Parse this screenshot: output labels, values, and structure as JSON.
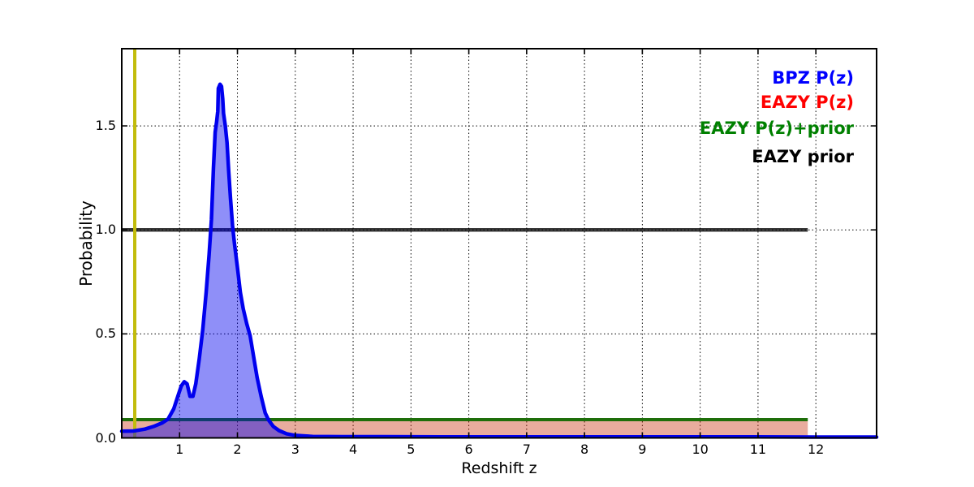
{
  "chart_data": {
    "type": "line",
    "title": "",
    "xlabel": "Redshift z",
    "ylabel": "Probability",
    "xlim": [
      0,
      13.05
    ],
    "ylim": [
      0,
      1.871
    ],
    "xticks": [
      1,
      2,
      3,
      4,
      5,
      6,
      7,
      8,
      9,
      10,
      11,
      12
    ],
    "xtick_labels": [
      "1",
      "2",
      "3",
      "4",
      "5",
      "6",
      "7",
      "8",
      "9",
      "10",
      "11",
      "12"
    ],
    "yticks": [
      0,
      0.5,
      1.0,
      1.5
    ],
    "ytick_labels": [
      "0.0",
      "0.5",
      "1.0",
      "1.5"
    ],
    "grid": {
      "enabled": true,
      "style": "dotted",
      "color": "#000000"
    },
    "legend": {
      "position": "upper-right-inside-text-only",
      "entries": [
        {
          "label": "BPZ P(z)",
          "color": "#0000ff"
        },
        {
          "label": "EAZY P(z)",
          "color": "#ff0000"
        },
        {
          "label": "EAZY P(z)+prior",
          "color": "#008000"
        },
        {
          "label": "EAZY prior",
          "color": "#000000"
        }
      ]
    },
    "series": [
      {
        "name": "BPZ P(z)",
        "kind": "filled_curve",
        "line_color": "#0000ee",
        "fill_color": "rgba(0,0,238,0.44)",
        "line_width": 4.5,
        "points": [
          [
            0.0,
            0.032
          ],
          [
            0.2,
            0.033
          ],
          [
            0.4,
            0.042
          ],
          [
            0.55,
            0.055
          ],
          [
            0.7,
            0.072
          ],
          [
            0.8,
            0.09
          ],
          [
            0.9,
            0.14
          ],
          [
            0.97,
            0.2
          ],
          [
            1.03,
            0.25
          ],
          [
            1.08,
            0.27
          ],
          [
            1.13,
            0.26
          ],
          [
            1.18,
            0.2
          ],
          [
            1.23,
            0.2
          ],
          [
            1.28,
            0.26
          ],
          [
            1.34,
            0.38
          ],
          [
            1.4,
            0.52
          ],
          [
            1.46,
            0.7
          ],
          [
            1.51,
            0.88
          ],
          [
            1.55,
            1.05
          ],
          [
            1.585,
            1.3
          ],
          [
            1.615,
            1.47
          ],
          [
            1.64,
            1.52
          ],
          [
            1.66,
            1.57
          ],
          [
            1.67,
            1.68
          ],
          [
            1.7,
            1.7
          ],
          [
            1.725,
            1.69
          ],
          [
            1.745,
            1.63
          ],
          [
            1.76,
            1.56
          ],
          [
            1.79,
            1.5
          ],
          [
            1.82,
            1.42
          ],
          [
            1.85,
            1.28
          ],
          [
            1.88,
            1.15
          ],
          [
            1.915,
            1.02
          ],
          [
            1.95,
            0.93
          ],
          [
            2.0,
            0.82
          ],
          [
            2.05,
            0.7
          ],
          [
            2.1,
            0.62
          ],
          [
            2.16,
            0.55
          ],
          [
            2.22,
            0.49
          ],
          [
            2.28,
            0.39
          ],
          [
            2.34,
            0.29
          ],
          [
            2.41,
            0.2
          ],
          [
            2.48,
            0.12
          ],
          [
            2.54,
            0.085
          ],
          [
            2.62,
            0.055
          ],
          [
            2.72,
            0.035
          ],
          [
            2.85,
            0.02
          ],
          [
            3.0,
            0.012
          ],
          [
            3.3,
            0.007
          ],
          [
            3.8,
            0.006
          ],
          [
            4.5,
            0.006
          ],
          [
            5.5,
            0.005
          ],
          [
            7.0,
            0.005
          ],
          [
            9.0,
            0.005
          ],
          [
            11.0,
            0.005
          ],
          [
            12.0,
            0.004
          ],
          [
            13.05,
            0.004
          ]
        ]
      },
      {
        "name": "EAZY P(z)",
        "kind": "filled_flat",
        "fill_color": "rgba(200,48,13,0.40)",
        "y_top": 0.082,
        "x_range": [
          0,
          11.86
        ]
      },
      {
        "name": "EAZY P(z)+prior",
        "kind": "hline",
        "color": "#1e6e0a",
        "line_width": 4,
        "y": 0.088,
        "x_range": [
          0,
          11.86
        ]
      },
      {
        "name": "EAZY prior",
        "kind": "hline",
        "color": "rgba(0,0,0,0.78)",
        "line_width": 4.5,
        "y": 1.0,
        "x_range": [
          0,
          11.86
        ]
      },
      {
        "name": "vertical marker line",
        "kind": "vline",
        "color": "#c2bc0c",
        "line_width": 4,
        "x": 0.225
      }
    ]
  }
}
